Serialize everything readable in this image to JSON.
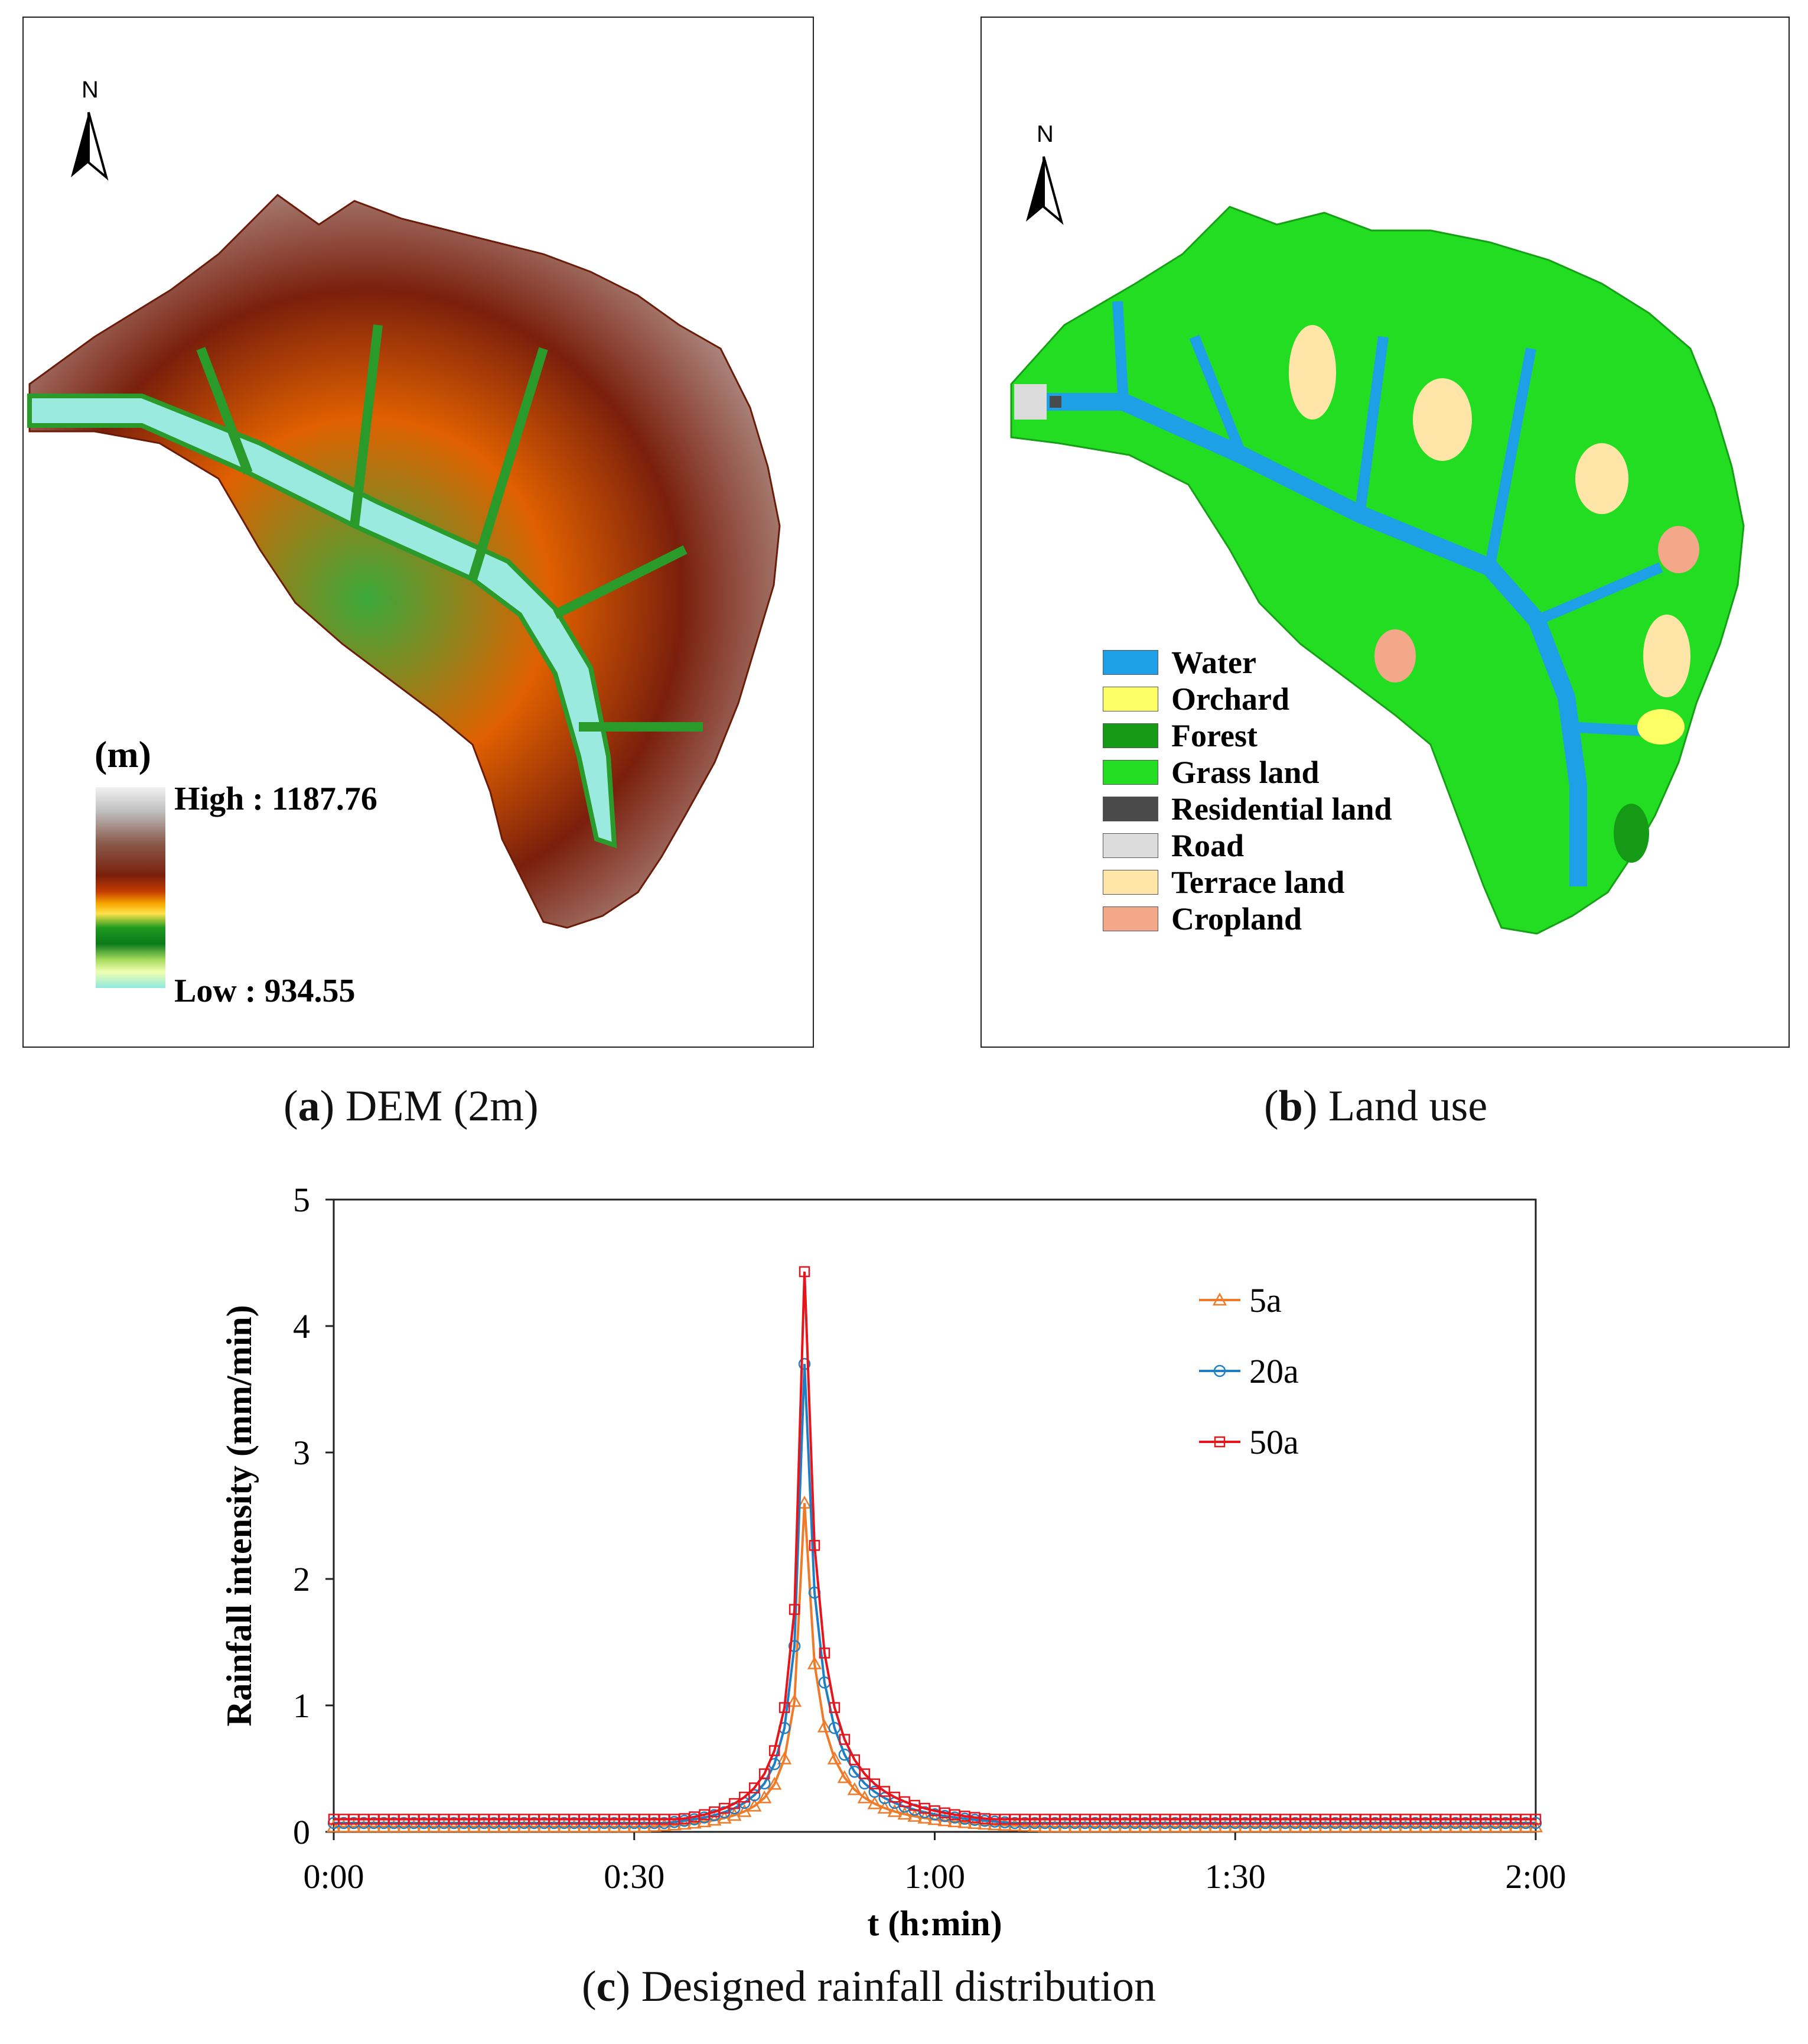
{
  "panel_a": {
    "north_label": "N",
    "legend_unit": "(m)",
    "legend_high": "High : 1187.76",
    "legend_low": "Low : 934.55",
    "caption_letter": "a",
    "caption_text": " DEM (2m)",
    "ramp_colors": [
      "#f2f2f2",
      "#bfbfbf",
      "#8a5a4a",
      "#7a1f0c",
      "#a13a0c",
      "#e05a00",
      "#f8a800",
      "#ffe24a",
      "#1f9a1f",
      "#0a7a1a",
      "#66c23a",
      "#f0ffb0",
      "#8fe8e0"
    ]
  },
  "panel_b": {
    "north_label": "N",
    "caption_letter": "b",
    "caption_text": " Land use",
    "legend": [
      {
        "label": "Water",
        "color": "#1ea0e6"
      },
      {
        "label": "Orchard",
        "color": "#ffff66"
      },
      {
        "label": "Forest",
        "color": "#159a15"
      },
      {
        "label": "Grass land",
        "color": "#22dd22"
      },
      {
        "label": "Residential land",
        "color": "#4a4a4a"
      },
      {
        "label": "Road",
        "color": "#dcdcdc"
      },
      {
        "label": "Terrace land",
        "color": "#ffe6a8"
      },
      {
        "label": "Cropland",
        "color": "#f4a88a"
      }
    ]
  },
  "panel_c": {
    "caption_letter": "c",
    "caption_text": " Designed rainfall distribution"
  },
  "chart_data": {
    "type": "line",
    "title": "",
    "xlabel": "t (h:min)",
    "ylabel": "Rainfall intensity (mm/min)",
    "xlim": [
      0,
      120
    ],
    "ylim": [
      0,
      5
    ],
    "x_ticks": [
      0,
      30,
      60,
      90,
      120
    ],
    "x_tick_labels": [
      "0:00",
      "0:30",
      "1:00",
      "1:30",
      "2:00"
    ],
    "y_ticks": [
      0,
      1,
      2,
      3,
      4,
      5
    ],
    "y_tick_labels": [
      "0",
      "1",
      "2",
      "3",
      "4",
      "5"
    ],
    "peak_time": 47,
    "legend_position": "top-right",
    "series": [
      {
        "name": "5a",
        "color": "#f07a28",
        "marker": "triangle",
        "peak": 2.6,
        "base": 0.04
      },
      {
        "name": "20a",
        "color": "#1f7fc4",
        "marker": "circle",
        "peak": 3.7,
        "base": 0.07
      },
      {
        "name": "50a",
        "color": "#e8141c",
        "marker": "square",
        "peak": 4.43,
        "base": 0.1
      }
    ]
  }
}
